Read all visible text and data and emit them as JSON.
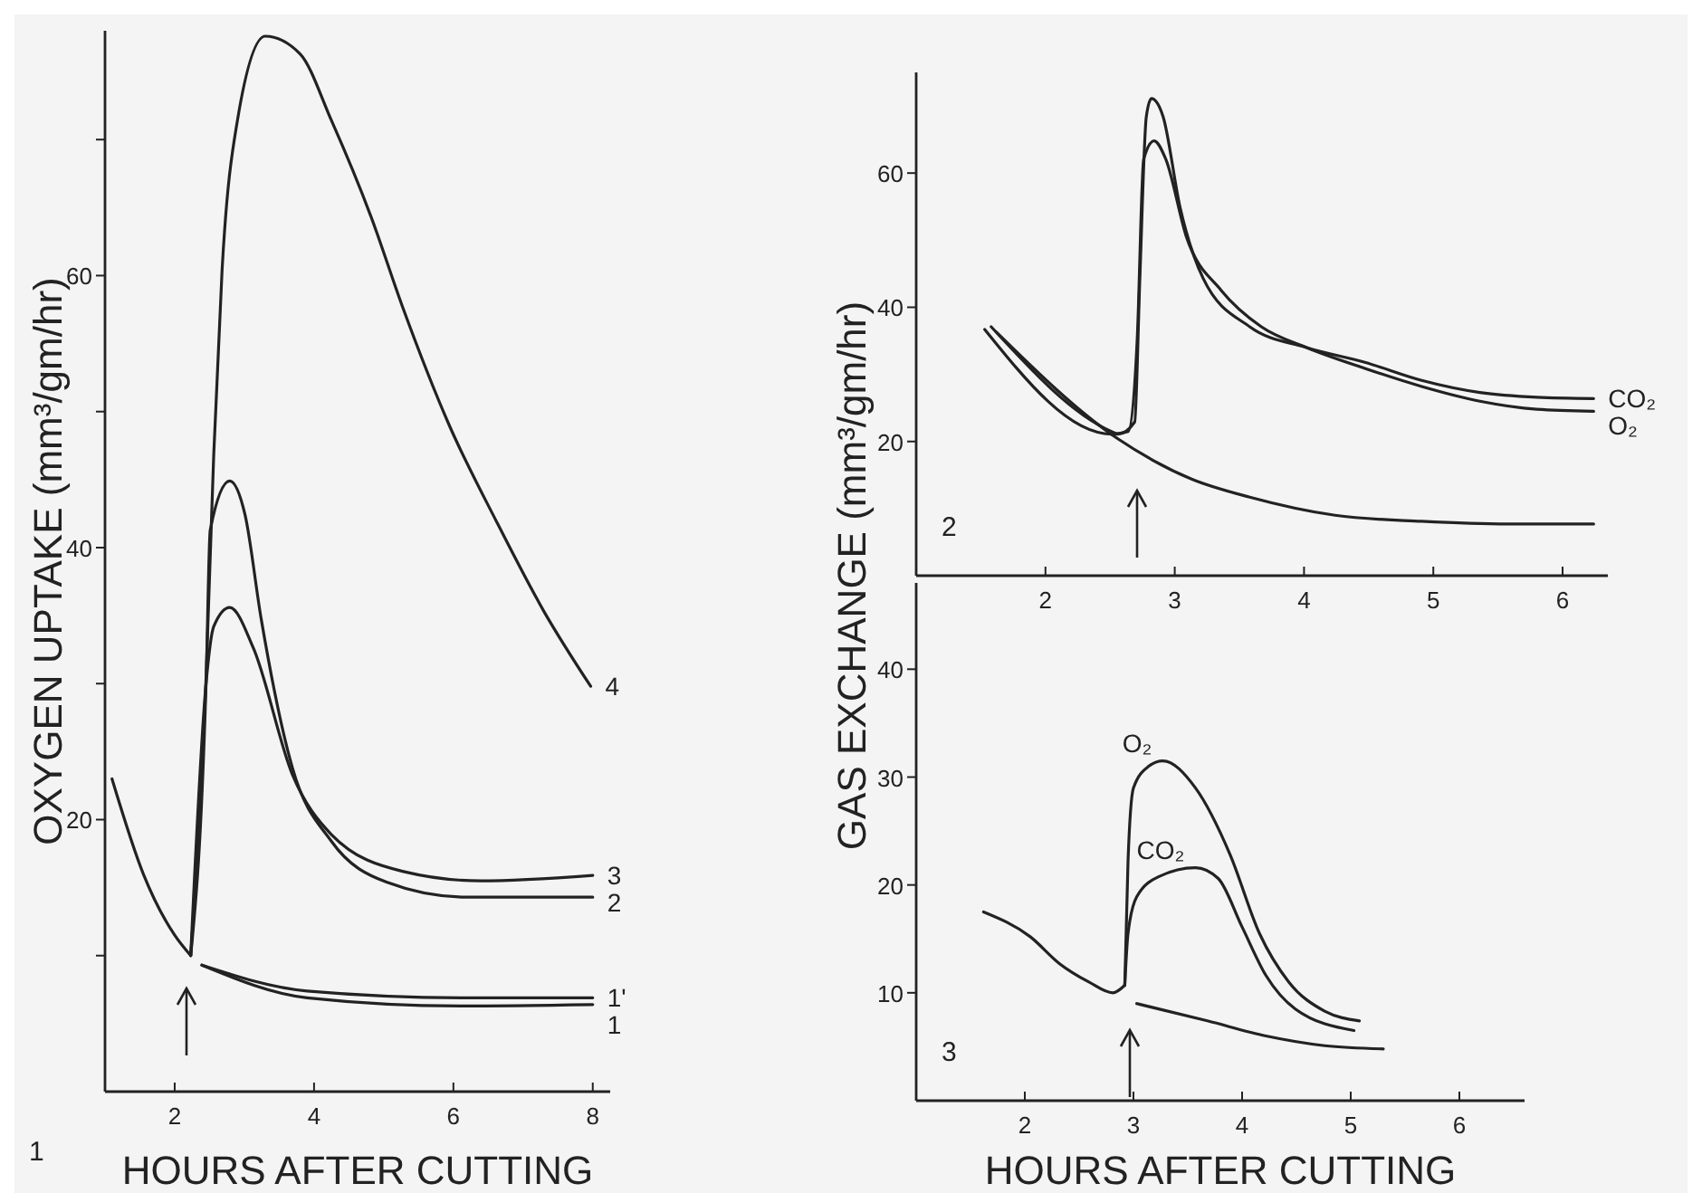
{
  "chart_data": [
    {
      "type": "line",
      "xlabel": "HOURS AFTER CUTTING",
      "ylabel": "OXYGEN UPTAKE (mm³/gm/hr)",
      "xlim": [
        1,
        8.25
      ],
      "ylim": [
        0,
        78
      ],
      "xticks": [
        2,
        4,
        6,
        8
      ],
      "yticks": [
        {
          "value": 10,
          "label": null
        },
        20,
        {
          "value": 30,
          "label": null
        },
        40,
        {
          "value": 50,
          "label": null
        },
        60,
        {
          "value": 70,
          "label": null
        }
      ],
      "grid": false,
      "legend": false,
      "marker": "none",
      "line_style": "solid",
      "series": [
        {
          "color": "#222222",
          "x": [
            1.1,
            1.55,
            2.0,
            2.23
          ],
          "values": [
            23,
            16,
            11.5,
            10
          ]
        },
        {
          "name": "4",
          "color": "#222222",
          "x": [
            2.23,
            2.45,
            2.56,
            2.68,
            2.9,
            3.3,
            3.8,
            4.25,
            4.82,
            5.27,
            5.94,
            6.62,
            7.3,
            7.97
          ],
          "values": [
            10,
            30.4,
            46.8,
            60.4,
            71.4,
            77.6,
            76.3,
            71.4,
            64.3,
            57.7,
            49,
            41.9,
            35.3,
            29.8
          ]
        },
        {
          "name": "3",
          "color": "#222222",
          "x": [
            2.23,
            2.45,
            2.56,
            2.79,
            3.13,
            3.69,
            4.25,
            5.27,
            6.39,
            8.0
          ],
          "values": [
            10,
            30,
            34.2,
            35.6,
            32.6,
            23.3,
            18.9,
            16.2,
            15.5,
            15.9
          ]
        },
        {
          "name": "2",
          "color": "#222222",
          "x": [
            2.23,
            2.45,
            2.51,
            2.79,
            3.01,
            3.24,
            3.69,
            4.25,
            5.04,
            6.17,
            8.0
          ],
          "values": [
            10,
            30,
            41.3,
            44.9,
            42.4,
            34.8,
            23.8,
            18.4,
            15.4,
            14.3,
            14.3
          ]
        },
        {
          "name": "1'",
          "color": "#222222",
          "x": [
            2.39,
            3.9,
            6.17,
            8.0
          ],
          "values": [
            9.3,
            7.4,
            6.9,
            6.9
          ]
        },
        {
          "name": "1",
          "color": "#222222",
          "x": [
            2.39,
            3.9,
            6.1,
            8.0
          ],
          "values": [
            9.3,
            6.9,
            6.3,
            6.4
          ]
        }
      ],
      "annotations": [
        "1"
      ]
    },
    {
      "type": "line",
      "ylabel": "GAS EXCHANGE (mm³/gm/hr)",
      "xlim": [
        1,
        6.35
      ],
      "ylim": [
        0,
        75
      ],
      "xticks": [
        2,
        3,
        4,
        5,
        6
      ],
      "yticks": [
        20,
        40,
        60
      ],
      "grid": false,
      "legend": false,
      "marker": "none",
      "line_style": "solid",
      "series": [
        {
          "name": "CO₂",
          "color": "#222222",
          "x": [
            1.58,
            2.51,
            2.56,
            2.69,
            2.73,
            2.78,
            2.82,
            2.91,
            3.04,
            3.22,
            3.58,
            4.02,
            4.47,
            4.91,
            5.36,
            5.8,
            6.24
          ],
          "values": [
            37.1,
            21.5,
            21.1,
            22.9,
            44.3,
            68.4,
            71.1,
            68.4,
            55,
            44.3,
            37.1,
            34,
            31.8,
            29.1,
            27.3,
            26.6,
            26.4
          ]
        },
        {
          "name": "O₂",
          "color": "#222222",
          "x": [
            1.53,
            2.51,
            2.64,
            2.71,
            2.76,
            2.84,
            2.93,
            3.09,
            3.36,
            3.67,
            4.02,
            4.47,
            4.91,
            5.36,
            5.8,
            6.24
          ],
          "values": [
            36.7,
            21.1,
            21.5,
            35.4,
            62.1,
            64.8,
            62.1,
            50.5,
            42.5,
            37.1,
            34,
            30.9,
            28.2,
            26,
            24.8,
            24.5
          ]
        },
        {
          "color": "#222222",
          "x": [
            1.62,
            2.56,
            3.13,
            3.58,
            4.24,
            4.91,
            5.58,
            6.24
          ],
          "values": [
            36.3,
            20.4,
            14.4,
            11.7,
            9,
            8.1,
            7.7,
            7.7
          ]
        }
      ],
      "annotations": [
        "2"
      ]
    },
    {
      "type": "line",
      "xlabel": "HOURS AFTER CUTTING",
      "xlim": [
        1,
        6.6
      ],
      "ylim": [
        0,
        48
      ],
      "xticks": [
        2,
        3,
        4,
        5,
        6
      ],
      "yticks": [
        10,
        20,
        30,
        40
      ],
      "grid": false,
      "legend": false,
      "marker": "none",
      "line_style": "solid",
      "series": [
        {
          "color": "#222222",
          "x": [
            1.62,
            2.05,
            2.32,
            2.59,
            2.81,
            2.92
          ],
          "values": [
            17.5,
            15.2,
            12.7,
            11,
            10,
            10.7
          ]
        },
        {
          "name": "O₂",
          "color": "#222222",
          "x": [
            2.92,
            2.95,
            3.0,
            3.14,
            3.27,
            3.57,
            3.89,
            4.16,
            4.43,
            4.76,
            5.08
          ],
          "values": [
            10.7,
            22.2,
            29,
            31,
            31.5,
            29,
            22.8,
            15.5,
            11,
            8.3,
            7.4
          ]
        },
        {
          "name": "CO₂",
          "color": "#222222",
          "x": [
            2.92,
            2.95,
            3.03,
            3.24,
            3.57,
            3.78,
            4.0,
            4.22,
            4.49,
            5.03
          ],
          "values": [
            10.7,
            15.5,
            18.9,
            20.8,
            21.6,
            20.6,
            16.1,
            11.6,
            8.5,
            6.5
          ]
        },
        {
          "color": "#222222",
          "x": [
            3.03,
            3.68,
            4.22,
            4.76,
            5.3
          ],
          "values": [
            9,
            7.4,
            6,
            5.1,
            4.8
          ]
        }
      ],
      "annotations": [
        "3"
      ]
    }
  ]
}
